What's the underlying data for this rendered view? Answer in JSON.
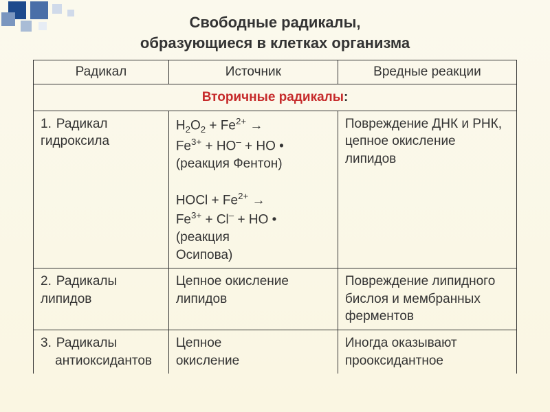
{
  "background": {
    "top_color": "#fbf9ed",
    "bottom_color": "#faf6e2"
  },
  "decoration": {
    "colors": [
      "#1d4a8c",
      "#4a6fa8",
      "#7a96bf",
      "#a9bcd6",
      "#d0daea",
      "#e6ecf4"
    ]
  },
  "title_line1": "Свободные радикалы,",
  "title_line2": "образующиеся в клетках организма",
  "title_color": "#333333",
  "headers": {
    "col1": "Радикал",
    "col2": "Источник",
    "col3": "Вредные реакции"
  },
  "section": {
    "label": "Вторичные радикалы",
    "suffix": ":",
    "color": "#c62a2a"
  },
  "rows": [
    {
      "num": "1.",
      "name": "Радикал гидроксила",
      "source_lines": [
        "H₂O₂ + Fe²⁺ →",
        "Fe³⁺ + HO⁻ + HO •",
        "(реакция Фентон)",
        "",
        "HOCl + Fe²⁺ →",
        "Fe³⁺ + Cl⁻ + HO •",
        "(реакция",
        "Осипова)"
      ],
      "effect": "Повреждение ДНК и РНК, цепное окисление липидов"
    },
    {
      "num": "2.",
      "name": "Радикалы липидов",
      "source": "Цепное окисление липидов",
      "effect": "Повреждение липидного бислоя и мембранных ферментов"
    },
    {
      "num": "3.",
      "name_line1": "Радикалы",
      "name_line2": "антиоксидантов",
      "source_line1": "Цепное",
      "source_line2": "окисление",
      "effect_line1": "Иногда оказывают",
      "effect_line2": "прооксидантное"
    }
  ],
  "text_color": "#333333"
}
